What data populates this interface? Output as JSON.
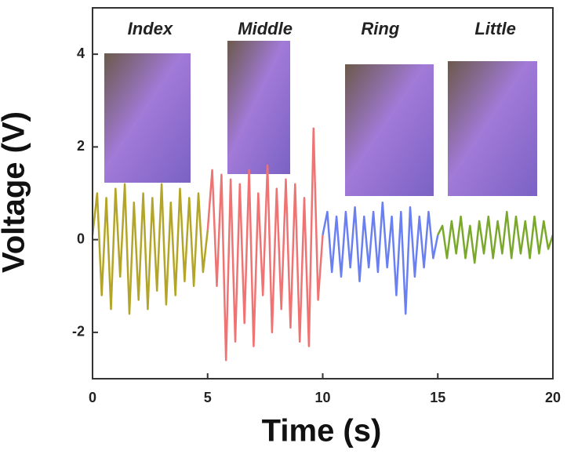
{
  "chart_data": {
    "type": "line",
    "xlabel": "Time (s)",
    "ylabel": "Voltage (V)",
    "xlim": [
      0,
      20
    ],
    "xticks": [
      0,
      5,
      10,
      15,
      20
    ],
    "ylim": [
      -3,
      5
    ],
    "yticks": [
      -2,
      0,
      2,
      4
    ],
    "series": [
      {
        "name": "Index",
        "color": "#b3a52a",
        "x": [
          0,
          0.2,
          0.4,
          0.6,
          0.8,
          1.0,
          1.2,
          1.4,
          1.6,
          1.8,
          2.0,
          2.2,
          2.4,
          2.6,
          2.8,
          3.0,
          3.2,
          3.4,
          3.6,
          3.8,
          4.0,
          4.2,
          4.4,
          4.6,
          4.8,
          5.0
        ],
        "values": [
          0.1,
          1.0,
          -1.2,
          0.9,
          -1.5,
          1.1,
          -0.8,
          1.2,
          -1.6,
          0.8,
          -1.3,
          1.0,
          -1.5,
          0.9,
          -1.1,
          1.2,
          -1.4,
          0.8,
          -1.2,
          1.1,
          -0.9,
          0.9,
          -1.0,
          1.0,
          -0.7,
          0.2
        ]
      },
      {
        "name": "Middle",
        "color": "#f07373",
        "x": [
          5.0,
          5.2,
          5.4,
          5.6,
          5.8,
          6.0,
          6.2,
          6.4,
          6.6,
          6.8,
          7.0,
          7.2,
          7.4,
          7.6,
          7.8,
          8.0,
          8.2,
          8.4,
          8.6,
          8.8,
          9.0,
          9.2,
          9.4,
          9.6,
          9.8,
          10.0
        ],
        "values": [
          0.2,
          1.5,
          -1.0,
          1.4,
          -2.6,
          1.3,
          -2.2,
          1.2,
          -1.8,
          1.5,
          -2.3,
          1.0,
          -1.2,
          1.6,
          -2.0,
          1.1,
          -1.5,
          1.3,
          -1.9,
          1.2,
          -2.2,
          0.9,
          -2.3,
          2.4,
          -1.3,
          0.1
        ]
      },
      {
        "name": "Ring",
        "color": "#6a7ff0",
        "x": [
          10.0,
          10.2,
          10.4,
          10.6,
          10.8,
          11.0,
          11.2,
          11.4,
          11.6,
          11.8,
          12.0,
          12.2,
          12.4,
          12.6,
          12.8,
          13.0,
          13.2,
          13.4,
          13.6,
          13.8,
          14.0,
          14.2,
          14.4,
          14.6,
          14.8,
          15.0
        ],
        "values": [
          0.1,
          0.6,
          -0.7,
          0.5,
          -0.8,
          0.6,
          -0.6,
          0.7,
          -0.9,
          0.5,
          -0.6,
          0.6,
          -0.7,
          0.8,
          -0.6,
          0.5,
          -1.2,
          0.6,
          -1.6,
          0.7,
          -0.8,
          0.5,
          -0.6,
          0.6,
          -0.4,
          0.1
        ]
      },
      {
        "name": "Little",
        "color": "#7aa82c",
        "x": [
          15.0,
          15.2,
          15.4,
          15.6,
          15.8,
          16.0,
          16.2,
          16.4,
          16.6,
          16.8,
          17.0,
          17.2,
          17.4,
          17.6,
          17.8,
          18.0,
          18.2,
          18.4,
          18.6,
          18.8,
          19.0,
          19.2,
          19.4,
          19.6,
          19.8,
          20.0
        ],
        "values": [
          0.1,
          0.3,
          -0.4,
          0.4,
          -0.3,
          0.5,
          -0.4,
          0.3,
          -0.5,
          0.4,
          -0.3,
          0.5,
          -0.4,
          0.4,
          -0.3,
          0.6,
          -0.4,
          0.5,
          -0.3,
          0.4,
          -0.4,
          0.5,
          -0.3,
          0.4,
          -0.2,
          0.1
        ]
      }
    ]
  }
}
